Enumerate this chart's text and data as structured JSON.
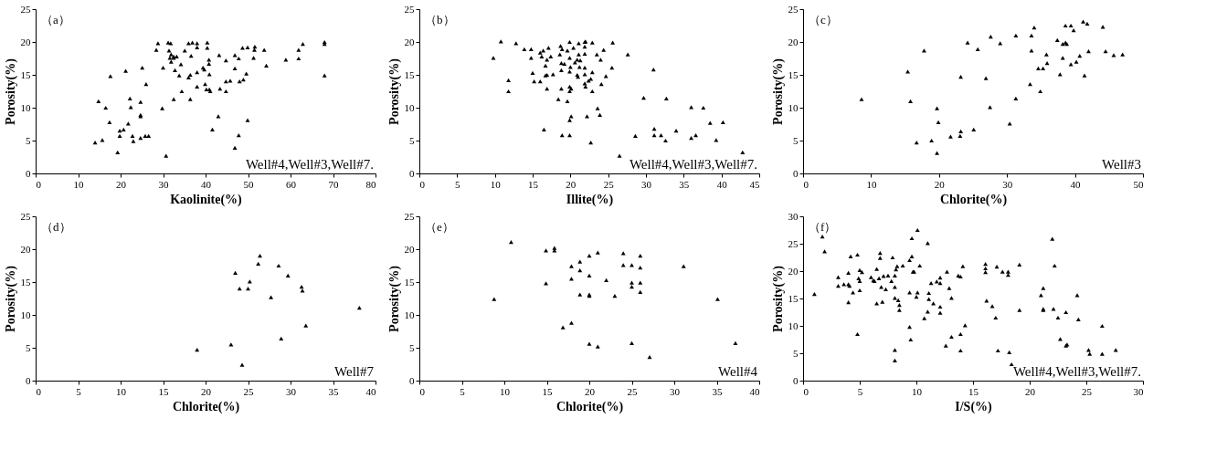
{
  "chart_data": [
    {
      "type": "scatter",
      "title": "（a）",
      "xlabel": "Kaolinite(%)",
      "ylabel": "Porosity(%)",
      "marker": "triangle",
      "xlim": [
        0,
        80
      ],
      "xticks": [
        0,
        10,
        20,
        30,
        40,
        50,
        60,
        70,
        80
      ],
      "ylim": [
        0,
        25
      ],
      "yticks": [
        0,
        5,
        10,
        15,
        20,
        25
      ],
      "annotations": [
        "Well#4,Well#3,Well#7."
      ],
      "x": [
        28.8,
        28.4,
        31.2,
        31.8,
        31.4,
        31.9,
        32.5,
        33.2,
        31.6,
        32.5,
        31.9,
        32.8,
        33.8,
        34.2,
        36.0,
        36.9,
        38.0,
        38.0,
        40.4,
        40.4,
        35.1,
        36.6,
        36.4,
        36.0,
        38.0,
        39.4,
        39.7,
        40.8,
        40.8,
        40.9,
        40.9,
        39.9,
        38.0,
        40.2,
        41.1,
        43.2,
        44.8,
        43.4,
        44.8,
        44.8,
        45.8,
        46.9,
        47.8,
        46.9,
        48.0,
        48.9,
        49.6,
        48.7,
        49.9,
        51.6,
        51.5,
        51.3,
        53.8,
        54.3,
        58.9,
        61.9,
        61.9,
        62.9,
        68.0,
        68.0,
        68.0,
        30.0,
        25.1,
        21.2,
        17.6,
        26.0,
        29.8,
        32.5,
        34.4,
        36.4,
        43.0,
        41.6,
        47.8,
        49.9,
        46.9,
        30.7,
        14.8,
        16.5,
        17.4,
        19.8,
        20.7,
        19.8,
        21.8,
        22.2,
        22.4,
        24.7,
        24.7,
        24.7,
        22.8,
        23.0,
        24.7,
        25.8,
        26.6,
        14.0,
        15.7,
        19.3
      ],
      "series": [
        {
          "color": "#000000",
          "values": [
            19.8,
            18.8,
            19.9,
            19.8,
            18.7,
            18.1,
            17.8,
            17.8,
            17.6,
            17.6,
            17.0,
            15.7,
            14.9,
            16.6,
            19.8,
            19.9,
            19.8,
            19.2,
            19.9,
            19.1,
            18.7,
            17.9,
            15.0,
            14.6,
            15.4,
            16.1,
            15.8,
            17.3,
            16.7,
            15.1,
            12.8,
            13.6,
            13.2,
            12.8,
            12.5,
            18.0,
            17.2,
            12.9,
            12.5,
            14.0,
            14.1,
            18.0,
            17.5,
            16.0,
            14.0,
            14.3,
            15.2,
            19.1,
            19.2,
            19.3,
            18.8,
            17.6,
            18.8,
            16.4,
            17.3,
            18.8,
            17.5,
            19.7,
            20.0,
            19.7,
            14.9,
            16.1,
            16.1,
            15.6,
            14.8,
            13.6,
            9.9,
            11.3,
            12.5,
            11.3,
            8.7,
            6.7,
            5.8,
            8.1,
            3.9,
            2.7,
            11.0,
            10.0,
            7.8,
            6.5,
            6.7,
            5.7,
            7.6,
            11.4,
            10.1,
            10.9,
            8.9,
            8.7,
            5.7,
            4.9,
            5.4,
            5.7,
            5.7,
            4.7,
            5.1,
            3.2
          ]
        }
      ]
    },
    {
      "type": "scatter",
      "title": "（b）",
      "xlabel": "Illite(%)",
      "ylabel": "Porosity(%)",
      "marker": "triangle",
      "xlim": [
        0,
        45
      ],
      "xticks": [
        0,
        5,
        10,
        15,
        20,
        25,
        30,
        35,
        40,
        45
      ],
      "ylim": [
        0,
        25
      ],
      "yticks": [
        0,
        5,
        10,
        15,
        20,
        25
      ],
      "annotations": [
        "Well#4,Well#3,Well#7."
      ],
      "x": [
        10.8,
        9.8,
        12.8,
        13.9,
        14.8,
        14.8,
        16.0,
        16.2,
        16.4,
        16.9,
        17.1,
        17.4,
        16.7,
        18.7,
        18.9,
        18.6,
        19.6,
        19.9,
        20.4,
        21.1,
        21.9,
        22.0,
        22.9,
        21.9,
        19.9,
        21.1,
        21.9,
        18.8,
        19.2,
        20.6,
        20.9,
        21.3,
        20.0,
        21.2,
        21.9,
        23.5,
        24.0,
        24.4,
        25.6,
        25.5,
        27.6,
        15.0,
        16.7,
        16.9,
        17.7,
        18.8,
        19.9,
        20.9,
        21.0,
        21.9,
        22.9,
        24.7,
        22.7,
        22.4,
        21.9,
        22.0,
        24.1,
        11.8,
        11.8,
        15.2,
        16.0,
        16.9,
        18.8,
        19.9,
        20.1,
        19.9,
        22.9,
        18.4,
        19.6,
        23.6,
        23.9,
        22.2,
        20.1,
        19.9,
        16.5,
        18.9,
        19.9,
        22.7,
        26.5,
        28.6,
        29.7,
        31.0,
        32.7,
        31.1,
        31.1,
        32.0,
        32.6,
        34.0,
        36.0,
        37.6,
        38.5,
        40.2,
        36.0,
        36.6,
        39.3,
        42.8
      ],
      "series": [
        {
          "color": "#000000",
          "values": [
            20.1,
            17.6,
            19.8,
            18.9,
            18.9,
            17.6,
            18.4,
            17.8,
            18.7,
            17.3,
            19.1,
            17.8,
            16.4,
            19.4,
            18.9,
            18.1,
            18.7,
            20.0,
            19.1,
            19.8,
            20.0,
            20.1,
            19.9,
            19.3,
            17.6,
            18.1,
            18.2,
            16.8,
            16.7,
            16.9,
            17.3,
            17.2,
            16.2,
            16.2,
            16.1,
            18.1,
            17.3,
            18.8,
            19.9,
            16.1,
            18.1,
            15.3,
            14.9,
            15.0,
            15.1,
            15.7,
            15.5,
            15.0,
            14.7,
            15.1,
            15.4,
            14.8,
            14.4,
            14.1,
            13.7,
            13.2,
            13.6,
            14.2,
            12.5,
            14.0,
            14.0,
            12.9,
            12.9,
            13.2,
            12.9,
            12.5,
            12.5,
            11.3,
            11.0,
            9.9,
            8.9,
            8.7,
            8.7,
            8.1,
            6.7,
            5.8,
            5.8,
            4.7,
            2.7,
            5.7,
            11.5,
            15.8,
            11.4,
            6.8,
            5.8,
            5.8,
            5.0,
            6.5,
            10.1,
            10.0,
            7.7,
            7.8,
            5.4,
            5.8,
            5.1,
            3.2
          ]
        }
      ]
    },
    {
      "type": "scatter",
      "title": "（c）",
      "xlabel": "Chlorite(%)",
      "ylabel": "Porosity(%)",
      "marker": "triangle",
      "xlim": [
        0,
        50
      ],
      "xticks": [
        0,
        10,
        20,
        30,
        40,
        50
      ],
      "ylim": [
        0,
        25
      ],
      "yticks": [
        0,
        5,
        10,
        15,
        20,
        25
      ],
      "annotations": [
        "Well#3"
      ],
      "x": [
        8.6,
        15.4,
        15.8,
        17.8,
        19.7,
        19.9,
        19.7,
        16.7,
        18.9,
        21.7,
        23.1,
        23.2,
        25.1,
        23.2,
        24.2,
        25.7,
        26.9,
        27.5,
        27.6,
        29.0,
        30.4,
        31.3,
        31.3,
        33.4,
        33.6,
        33.6,
        34.0,
        34.9,
        34.6,
        35.3,
        35.8,
        35.9,
        37.4,
        37.8,
        38.2,
        38.6,
        38.8,
        38.2,
        38.6,
        39.4,
        39.8,
        39.4,
        40.2,
        40.7,
        41.2,
        41.8,
        42.0,
        41.4,
        44.1,
        44.5,
        45.7,
        47.0
      ],
      "series": [
        {
          "color": "#000000",
          "values": [
            11.3,
            15.5,
            11.0,
            18.7,
            9.9,
            7.8,
            3.1,
            4.7,
            5.0,
            5.6,
            5.7,
            6.4,
            6.7,
            14.7,
            19.9,
            18.9,
            14.5,
            10.1,
            20.8,
            19.8,
            7.6,
            11.4,
            21.0,
            13.6,
            18.7,
            21.0,
            22.2,
            12.5,
            16.0,
            16.0,
            18.1,
            16.8,
            20.3,
            15.1,
            19.7,
            19.9,
            19.7,
            17.6,
            22.5,
            22.5,
            21.8,
            16.6,
            17.0,
            17.9,
            23.1,
            22.8,
            18.6,
            14.9,
            22.3,
            18.6,
            18.0,
            18.1
          ]
        }
      ]
    },
    {
      "type": "scatter",
      "title": "（d）",
      "xlabel": "Chlorite(%)",
      "ylabel": "Porosity(%)",
      "marker": "triangle",
      "xlim": [
        0,
        40
      ],
      "xticks": [
        0,
        5,
        10,
        15,
        20,
        25,
        30,
        35,
        40
      ],
      "ylim": [
        0,
        25
      ],
      "yticks": [
        0,
        5,
        10,
        15,
        20,
        25
      ],
      "annotations": [
        "Well#7"
      ],
      "x": [
        19.0,
        23.0,
        24.3,
        23.5,
        24.0,
        25.0,
        25.2,
        26.2,
        26.4,
        27.7,
        28.6,
        28.9,
        29.7,
        31.3,
        31.4,
        31.8,
        38.1
      ],
      "series": [
        {
          "color": "#000000",
          "values": [
            4.7,
            5.5,
            2.4,
            16.4,
            14.0,
            14.0,
            15.1,
            17.8,
            19.0,
            12.7,
            17.5,
            6.4,
            16.0,
            14.3,
            13.7,
            8.4,
            11.1
          ]
        }
      ]
    },
    {
      "type": "scatter",
      "title": "（e）",
      "xlabel": "Chlorite(%)",
      "ylabel": "Porosity(%)",
      "marker": "triangle",
      "xlim": [
        0,
        40
      ],
      "xticks": [
        0,
        5,
        10,
        15,
        20,
        25,
        30,
        35,
        40
      ],
      "ylim": [
        0,
        25
      ],
      "yticks": [
        0,
        5,
        10,
        15,
        20,
        25
      ],
      "annotations": [
        "Well#4"
      ],
      "x": [
        8.8,
        10.8,
        14.9,
        15.9,
        15.9,
        14.9,
        16.9,
        17.9,
        17.9,
        17.9,
        18.9,
        18.9,
        18.9,
        20.0,
        20.0,
        20.0,
        20.0,
        20.0,
        21.0,
        21.0,
        22.0,
        23.0,
        24.0,
        24.0,
        25.0,
        25.0,
        25.0,
        25.0,
        26.0,
        26.0,
        26.0,
        26.0,
        27.1,
        31.1,
        35.1,
        37.2
      ],
      "series": [
        {
          "color": "#000000",
          "values": [
            12.4,
            21.1,
            19.8,
            20.2,
            19.8,
            14.8,
            8.1,
            8.8,
            15.5,
            17.4,
            18.1,
            16.8,
            13.1,
            19.0,
            16.0,
            13.1,
            12.9,
            5.6,
            19.5,
            5.2,
            15.3,
            12.9,
            19.4,
            17.6,
            17.6,
            14.9,
            14.3,
            5.7,
            19.0,
            17.2,
            14.9,
            13.5,
            3.6,
            17.4,
            12.4,
            5.7
          ]
        }
      ]
    },
    {
      "type": "scatter",
      "title": "（f）",
      "xlabel": "I/S(%)",
      "ylabel": "Porosity(%)",
      "marker": "triangle",
      "xlim": [
        0,
        30
      ],
      "xticks": [
        0,
        5,
        10,
        15,
        20,
        25,
        30
      ],
      "ylim": [
        0,
        30
      ],
      "yticks": [
        0,
        5,
        10,
        15,
        20,
        25,
        30
      ],
      "annotations": [
        "Well#4,Well#3,Well#7."
      ],
      "x": [
        1.0,
        1.7,
        1.9,
        3.1,
        3.1,
        3.6,
        4.0,
        4.1,
        4.0,
        4.0,
        4.2,
        4.4,
        4.8,
        4.8,
        4.9,
        5.0,
        5.0,
        5.0,
        5.2,
        6.0,
        6.2,
        6.3,
        6.5,
        6.5,
        6.7,
        6.8,
        6.8,
        6.9,
        7.0,
        7.1,
        7.3,
        7.5,
        7.8,
        7.9,
        8.1,
        8.1,
        8.1,
        8.1,
        8.1,
        8.2,
        8.3,
        8.4,
        8.5,
        8.5,
        8.8,
        9.4,
        9.4,
        9.4,
        9.5,
        9.6,
        9.6,
        9.7,
        9.8,
        10.0,
        10.1,
        10.1,
        10.3,
        10.7,
        11.0,
        11.0,
        11.1,
        11.1,
        11.3,
        11.5,
        11.8,
        12.1,
        12.1,
        12.1,
        12.1,
        12.6,
        12.7,
        12.9,
        13.1,
        13.1,
        13.7,
        13.9,
        13.9,
        13.9,
        14.1,
        14.3,
        16.1,
        16.1,
        16.1,
        16.2,
        16.7,
        17.0,
        17.1,
        17.2,
        17.6,
        18.1,
        18.1,
        18.2,
        18.4,
        19.1,
        19.1,
        21.0,
        21.2,
        21.2,
        21.2,
        22.0,
        22.1,
        22.2,
        22.5,
        22.7,
        23.2,
        23.2,
        23.3,
        24.2,
        24.3,
        25.2,
        25.3,
        26.4,
        26.4,
        27.6
      ],
      "series": [
        {
          "color": "#000000",
          "values": [
            15.8,
            26.3,
            23.6,
            18.9,
            17.3,
            17.6,
            17.6,
            17.3,
            19.7,
            14.3,
            22.7,
            16.1,
            8.5,
            23.0,
            18.7,
            18.2,
            20.2,
            16.5,
            19.8,
            18.9,
            18.3,
            18.2,
            20.4,
            14.1,
            18.7,
            23.3,
            22.4,
            17.1,
            14.4,
            19.1,
            16.7,
            19.2,
            18.2,
            22.5,
            17.1,
            19.2,
            15.1,
            5.6,
            3.7,
            20.3,
            20.9,
            14.7,
            13.8,
            12.9,
            21.0,
            16.1,
            9.8,
            22.0,
            7.5,
            26.0,
            22.7,
            19.9,
            19.9,
            15.3,
            27.5,
            16.1,
            21.0,
            11.4,
            25.1,
            12.6,
            16.0,
            14.9,
            17.8,
            14.1,
            18.1,
            18.8,
            17.8,
            13.5,
            12.4,
            6.4,
            19.9,
            16.9,
            15.1,
            8.0,
            19.2,
            19.0,
            8.5,
            5.5,
            20.9,
            10.1,
            21.3,
            20.5,
            19.8,
            14.6,
            13.6,
            11.5,
            20.8,
            5.5,
            19.9,
            19.9,
            19.3,
            5.2,
            3.0,
            21.2,
            12.9,
            15.6,
            16.9,
            13.1,
            12.9,
            25.9,
            13.1,
            21.0,
            11.5,
            7.6,
            12.5,
            6.4,
            6.6,
            15.6,
            11.2,
            5.6,
            4.9,
            10.0,
            4.9,
            5.6
          ]
        }
      ]
    }
  ]
}
